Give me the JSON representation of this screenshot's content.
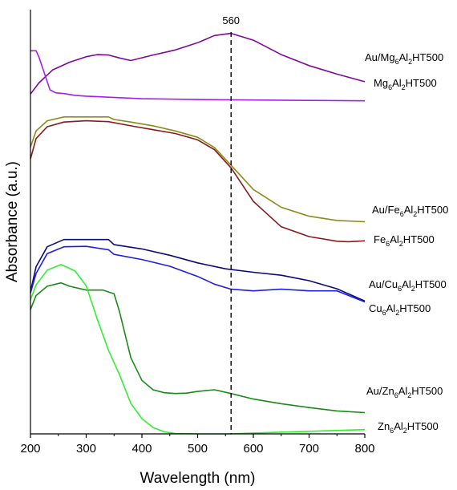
{
  "chart_data": {
    "type": "line",
    "xlabel": "Wavelength (nm)",
    "ylabel": "Absorbance (a.u.)",
    "xlim": [
      200,
      800
    ],
    "xticks": [
      "200",
      "300",
      "400",
      "500",
      "600",
      "700",
      "800"
    ],
    "y_ticks_shown": false,
    "y_scale": "arbitrary units, curves vertically offset",
    "ylim": [
      0,
      100
    ],
    "grid": false,
    "reference_line": {
      "x": 560,
      "label": "560",
      "style": "dashed"
    },
    "series": [
      {
        "name": "Au/Mg6Al2HT500",
        "label": {
          "pre": "Au/Mg",
          "s1": "6",
          "mid": "Al",
          "s2": "2",
          "post": "HT500"
        },
        "color": "#7b0a9a",
        "x": [
          200,
          215,
          240,
          270,
          300,
          320,
          340,
          360,
          380,
          420,
          460,
          500,
          530,
          560,
          600,
          650,
          700,
          750,
          800
        ],
        "y": [
          80.1,
          82.7,
          85.8,
          87.6,
          88.9,
          89.4,
          89.3,
          88.6,
          88.0,
          89.3,
          90.5,
          92.2,
          93.9,
          94.4,
          92.8,
          89.4,
          86.8,
          84.8,
          83.0
        ]
      },
      {
        "name": "Mg6Al2HT500",
        "label": {
          "pre": "Mg",
          "s1": "6",
          "mid": "Al",
          "s2": "2",
          "post": "HT500"
        },
        "color": "#a020f0",
        "x": [
          200,
          210,
          215,
          225,
          235,
          245,
          260,
          280,
          300,
          400,
          500,
          600,
          700,
          800
        ],
        "y": [
          90.3,
          90.3,
          88.9,
          85.0,
          81.1,
          80.4,
          80.2,
          79.8,
          79.6,
          79.0,
          78.8,
          78.7,
          78.6,
          78.5
        ]
      },
      {
        "name": "Au/Fe6Al2HT500",
        "label": {
          "pre": "Au/Fe",
          "s1": "6",
          "mid": "Al",
          "s2": "2",
          "post": "HT500"
        },
        "color": "#8b8b1a",
        "x": [
          200,
          210,
          230,
          260,
          300,
          340,
          350,
          380,
          420,
          460,
          500,
          530,
          560,
          600,
          650,
          700,
          750,
          800
        ],
        "y": [
          67.6,
          71.4,
          73.8,
          74.7,
          74.7,
          74.7,
          74.1,
          73.5,
          72.6,
          71.4,
          69.9,
          67.5,
          63.3,
          57.6,
          53.4,
          51.3,
          50.3,
          50.0
        ]
      },
      {
        "name": "Fe6Al2HT500",
        "label": {
          "pre": "Fe",
          "s1": "6",
          "mid": "Al",
          "s2": "2",
          "post": "HT500"
        },
        "color": "#8b1a1a",
        "x": [
          200,
          210,
          230,
          260,
          300,
          340,
          380,
          420,
          460,
          500,
          530,
          560,
          600,
          650,
          700,
          750,
          770,
          800
        ],
        "y": [
          64.8,
          69.6,
          72.4,
          73.5,
          73.8,
          73.6,
          72.6,
          71.7,
          70.8,
          69.3,
          67.0,
          62.7,
          54.8,
          48.8,
          46.5,
          45.4,
          45.3,
          45.5
        ]
      },
      {
        "name": "Au/Cu6Al2HT500",
        "label": {
          "pre": "Au/Cu",
          "s1": "6",
          "mid": "Al",
          "s2": "2",
          "post": "HT500"
        },
        "color": "#0b0b7a",
        "x": [
          200,
          210,
          230,
          260,
          300,
          340,
          350,
          400,
          450,
          500,
          550,
          600,
          650,
          700,
          750,
          800
        ],
        "y": [
          33.5,
          39.4,
          44.1,
          45.8,
          45.8,
          45.8,
          44.6,
          43.6,
          42.1,
          40.3,
          38.9,
          38.1,
          37.4,
          36.1,
          34.2,
          31.3
        ]
      },
      {
        "name": "Cu6Al2HT500",
        "label": {
          "pre": "Cu",
          "s1": "6",
          "mid": "Al",
          "s2": "2",
          "post": "HT500"
        },
        "color": "#1f1fe0",
        "x": [
          200,
          210,
          230,
          260,
          300,
          340,
          350,
          400,
          450,
          500,
          530,
          560,
          600,
          650,
          700,
          750,
          800
        ],
        "y": [
          33.2,
          37.8,
          42.5,
          44.1,
          44.2,
          43.4,
          42.3,
          41.1,
          39.5,
          37.1,
          35.3,
          34.1,
          33.7,
          34.1,
          33.7,
          33.7,
          31.1
        ]
      },
      {
        "name": "Au/Zn6Al2HT500",
        "label": {
          "pre": "Au/Zn",
          "s1": "6",
          "mid": "Al",
          "s2": "2",
          "post": "HT500"
        },
        "color": "#1a8a1a",
        "x": [
          200,
          210,
          230,
          255,
          270,
          300,
          330,
          350,
          360,
          380,
          400,
          420,
          440,
          460,
          480,
          500,
          530,
          560,
          600,
          650,
          700,
          750,
          800
        ],
        "y": [
          29.3,
          32.6,
          34.8,
          35.6,
          34.8,
          33.9,
          33.9,
          33.0,
          28.7,
          18.0,
          12.6,
          10.4,
          9.7,
          9.5,
          9.6,
          10.0,
          10.4,
          9.5,
          8.2,
          7.1,
          6.2,
          5.4,
          5.0
        ]
      },
      {
        "name": "Zn6Al2HT500",
        "label": {
          "pre": "Zn",
          "s1": "6",
          "mid": "Al",
          "s2": "2",
          "post": "HT500"
        },
        "color": "#33ee33",
        "x": [
          200,
          210,
          230,
          255,
          280,
          300,
          320,
          340,
          360,
          380,
          400,
          420,
          440,
          460,
          500,
          560,
          600,
          700,
          800
        ],
        "y": [
          31.6,
          35.1,
          38.6,
          39.9,
          38.4,
          34.9,
          27.0,
          19.7,
          13.9,
          7.2,
          3.6,
          1.5,
          0.5,
          0.1,
          0.0,
          0.0,
          0.2,
          0.6,
          1.0
        ]
      }
    ]
  }
}
